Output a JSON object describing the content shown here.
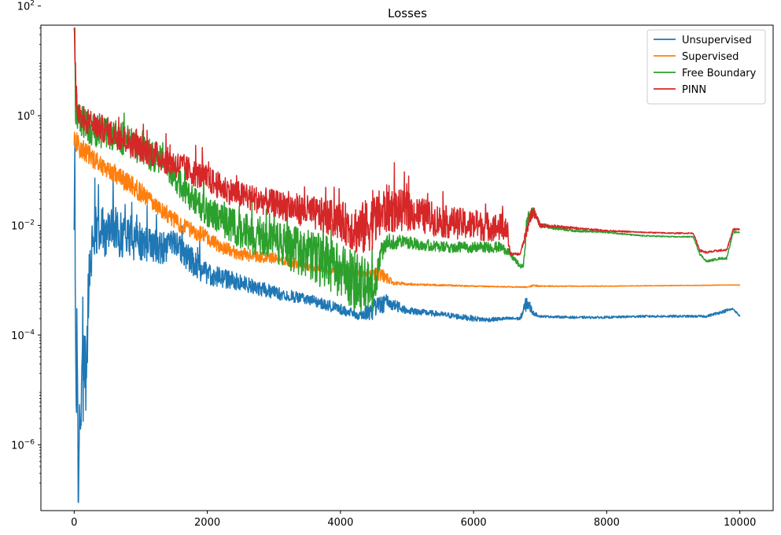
{
  "chart_data": {
    "type": "line",
    "title": "Losses",
    "xlabel": "",
    "ylabel": "",
    "yscale": "log",
    "xlim": [
      -500,
      10500
    ],
    "ylim_log10": [
      -7.2,
      1.65
    ],
    "xticks": [
      0,
      2000,
      4000,
      6000,
      8000,
      10000
    ],
    "xtick_labels": [
      "0",
      "2000",
      "4000",
      "6000",
      "8000",
      "10000"
    ],
    "yticks_log10": [
      -6,
      -4,
      -2,
      0,
      2
    ],
    "ytick_bases": [
      "10",
      "10",
      "10",
      "10",
      "10"
    ],
    "ytick_exps": [
      "−6",
      "−4",
      "−2",
      "0",
      "2"
    ],
    "grid": false,
    "legend_position": "top-right",
    "series": [
      {
        "name": "Unsupervised",
        "color": "#1f77b4",
        "x": [
          0,
          10,
          20,
          30,
          40,
          60,
          80,
          100,
          120,
          150,
          180,
          210,
          250,
          300,
          400,
          500,
          600,
          800,
          1000,
          1200,
          1400,
          1600,
          1800,
          2000,
          2500,
          3000,
          3500,
          4000,
          4300,
          4500,
          4700,
          5000,
          5500,
          6000,
          6200,
          6500,
          6700,
          6800,
          6900,
          7000,
          7500,
          8000,
          8500,
          9000,
          9500,
          9800,
          9900,
          10000
        ],
        "mean": [
          0.005,
          0.2,
          0.0002,
          5e-06,
          5e-05,
          3e-07,
          1e-06,
          5e-06,
          1e-05,
          5e-05,
          2e-05,
          0.0003,
          0.003,
          0.008,
          0.01,
          0.006,
          0.008,
          0.006,
          0.005,
          0.004,
          0.004,
          0.004,
          0.002,
          0.0013,
          0.0009,
          0.0006,
          0.00045,
          0.0003,
          0.00022,
          0.0003,
          0.0004,
          0.00028,
          0.00024,
          0.0002,
          0.00019,
          0.0002,
          0.0002,
          0.0004,
          0.00025,
          0.00022,
          0.00021,
          0.00021,
          0.00022,
          0.00022,
          0.00022,
          0.00028,
          0.0003,
          0.00022
        ],
        "noise_decades": [
          0.3,
          0.3,
          1.4,
          1.2,
          1.0,
          0.8,
          0.9,
          1.0,
          1.0,
          0.9,
          0.9,
          0.7,
          0.5,
          0.45,
          0.45,
          0.45,
          0.45,
          0.4,
          0.35,
          0.3,
          0.3,
          0.3,
          0.25,
          0.2,
          0.15,
          0.12,
          0.1,
          0.1,
          0.08,
          0.2,
          0.15,
          0.06,
          0.05,
          0.05,
          0.04,
          0.03,
          0.03,
          0.15,
          0.04,
          0.02,
          0.02,
          0.02,
          0.02,
          0.02,
          0.02,
          0.03,
          0.02,
          0.01
        ]
      },
      {
        "name": "Supervised",
        "color": "#ff7f0e",
        "x": [
          0,
          50,
          100,
          200,
          400,
          600,
          800,
          1000,
          1200,
          1400,
          1600,
          1800,
          2000,
          2200,
          2500,
          3000,
          3500,
          4000,
          4400,
          4600,
          4800,
          5000,
          6000,
          6700,
          6800,
          6900,
          7000,
          8000,
          9000,
          10000
        ],
        "mean": [
          0.4,
          0.3,
          0.25,
          0.2,
          0.13,
          0.09,
          0.06,
          0.04,
          0.025,
          0.016,
          0.01,
          0.008,
          0.006,
          0.004,
          0.003,
          0.0025,
          0.0018,
          0.0014,
          0.0013,
          0.0013,
          0.0009,
          0.00085,
          0.00078,
          0.00075,
          0.00075,
          0.0008,
          0.00078,
          0.00078,
          0.0008,
          0.00082
        ],
        "noise_decades": [
          0.2,
          0.2,
          0.2,
          0.18,
          0.18,
          0.18,
          0.18,
          0.18,
          0.15,
          0.15,
          0.15,
          0.15,
          0.15,
          0.12,
          0.12,
          0.1,
          0.08,
          0.06,
          0.05,
          0.15,
          0.04,
          0.02,
          0.01,
          0.01,
          0.01,
          0.02,
          0.01,
          0.005,
          0.005,
          0.005
        ]
      },
      {
        "name": "Free Boundary",
        "color": "#2ca02c",
        "x": [
          0,
          10,
          20,
          50,
          100,
          200,
          400,
          600,
          800,
          1000,
          1200,
          1400,
          1600,
          1700,
          1800,
          2000,
          2200,
          2500,
          3000,
          3500,
          3800,
          4000,
          4200,
          4400,
          4500,
          4600,
          4700,
          5000,
          5500,
          6000,
          6400,
          6500,
          6700,
          6750,
          6800,
          6900,
          7000,
          7500,
          8000,
          8500,
          9000,
          9300,
          9400,
          9500,
          9700,
          9800,
          9900,
          10000
        ],
        "mean": [
          100,
          60,
          1.5,
          1.0,
          0.8,
          0.6,
          0.5,
          0.45,
          0.35,
          0.25,
          0.18,
          0.12,
          0.06,
          0.04,
          0.025,
          0.018,
          0.012,
          0.008,
          0.005,
          0.003,
          0.002,
          0.0015,
          0.001,
          0.0008,
          0.0005,
          0.003,
          0.005,
          0.005,
          0.004,
          0.004,
          0.004,
          0.0035,
          0.0018,
          0.0018,
          0.012,
          0.018,
          0.01,
          0.008,
          0.0075,
          0.0065,
          0.0062,
          0.0062,
          0.003,
          0.0022,
          0.0025,
          0.0025,
          0.0075,
          0.0075
        ],
        "noise_decades": [
          0.3,
          0.3,
          0.4,
          0.3,
          0.3,
          0.3,
          0.3,
          0.3,
          0.3,
          0.3,
          0.3,
          0.3,
          0.3,
          0.3,
          0.3,
          0.3,
          0.3,
          0.35,
          0.4,
          0.45,
          0.5,
          0.5,
          0.55,
          0.55,
          0.4,
          0.2,
          0.15,
          0.12,
          0.1,
          0.1,
          0.1,
          0.08,
          0.04,
          0.04,
          0.15,
          0.1,
          0.04,
          0.02,
          0.015,
          0.01,
          0.01,
          0.01,
          0.02,
          0.02,
          0.02,
          0.02,
          0.02,
          0.01
        ]
      },
      {
        "name": "PINN",
        "color": "#d62728",
        "x": [
          0,
          10,
          20,
          50,
          100,
          200,
          400,
          600,
          800,
          1000,
          1200,
          1400,
          1600,
          1800,
          2000,
          2200,
          2500,
          3000,
          3500,
          4000,
          4200,
          4300,
          4500,
          4700,
          5000,
          5500,
          6000,
          6500,
          6550,
          6700,
          6800,
          6850,
          6900,
          7000,
          7500,
          8000,
          8500,
          9000,
          9300,
          9400,
          9500,
          9700,
          9800,
          9900,
          10000
        ],
        "mean": [
          50,
          10,
          3,
          1.5,
          1.0,
          0.8,
          0.6,
          0.45,
          0.35,
          0.25,
          0.2,
          0.15,
          0.12,
          0.09,
          0.07,
          0.05,
          0.035,
          0.025,
          0.018,
          0.012,
          0.009,
          0.008,
          0.012,
          0.02,
          0.018,
          0.012,
          0.01,
          0.009,
          0.003,
          0.003,
          0.008,
          0.015,
          0.018,
          0.01,
          0.009,
          0.008,
          0.0075,
          0.0072,
          0.0072,
          0.0035,
          0.0032,
          0.0035,
          0.0035,
          0.0085,
          0.0085
        ],
        "noise_decades": [
          0.3,
          0.3,
          0.3,
          0.25,
          0.25,
          0.25,
          0.25,
          0.25,
          0.25,
          0.25,
          0.25,
          0.25,
          0.25,
          0.25,
          0.25,
          0.25,
          0.25,
          0.25,
          0.3,
          0.35,
          0.45,
          0.5,
          0.5,
          0.45,
          0.35,
          0.3,
          0.28,
          0.25,
          0.02,
          0.02,
          0.1,
          0.12,
          0.1,
          0.04,
          0.02,
          0.015,
          0.01,
          0.01,
          0.01,
          0.02,
          0.02,
          0.02,
          0.02,
          0.02,
          0.01
        ]
      }
    ]
  }
}
